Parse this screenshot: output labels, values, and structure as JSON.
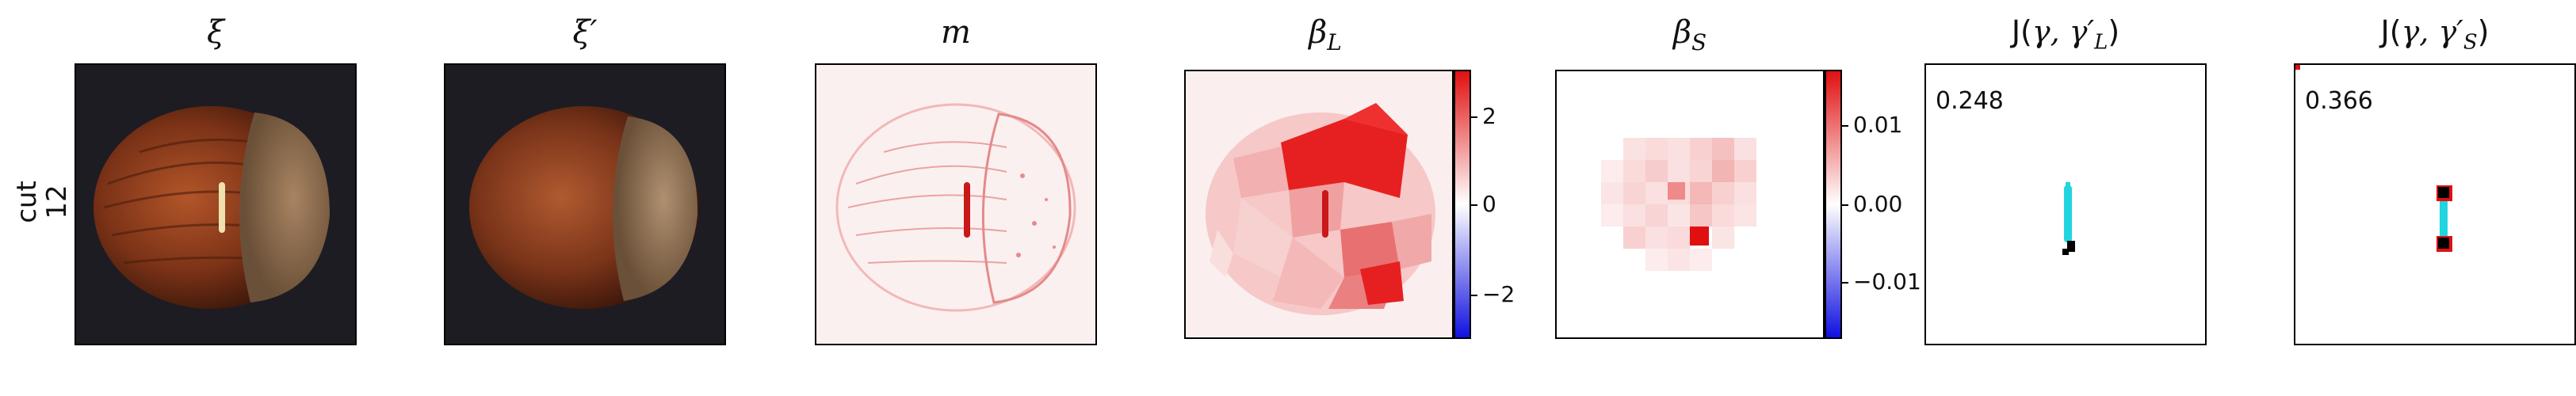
{
  "row": {
    "label_line1": "cut",
    "label_line2": "12"
  },
  "panels": {
    "xi": {
      "title": "ξ"
    },
    "xi_prime": {
      "title": "ξ′"
    },
    "m": {
      "title": "m"
    },
    "beta_L": {
      "title": "β",
      "sub": "L",
      "colorbar": {
        "ticks": [
          "2",
          "0",
          "−2"
        ]
      }
    },
    "beta_S": {
      "title": "β",
      "sub": "S",
      "colorbar": {
        "ticks": [
          "0.01",
          "0.00",
          "−0.01"
        ]
      }
    },
    "J_L": {
      "title_prefix": "J(",
      "title_mid": "γ, γ′",
      "title_sub": "L",
      "title_suffix": ")",
      "score": "0.248"
    },
    "J_S": {
      "title_prefix": "J(",
      "title_mid": "γ, γ′",
      "title_sub": "S",
      "title_suffix": ")",
      "score": "0.366"
    }
  },
  "colors": {
    "nut_dark": "#5a2410",
    "nut_mid": "#8b3a1a",
    "nut_light": "#b85a2c",
    "cap": "#8a6a4a",
    "background_dark": "#1d1c22",
    "heat_red": "#e01010",
    "heat_blue": "#1010e0",
    "cyan": "#22d4e0",
    "black": "#000000"
  }
}
